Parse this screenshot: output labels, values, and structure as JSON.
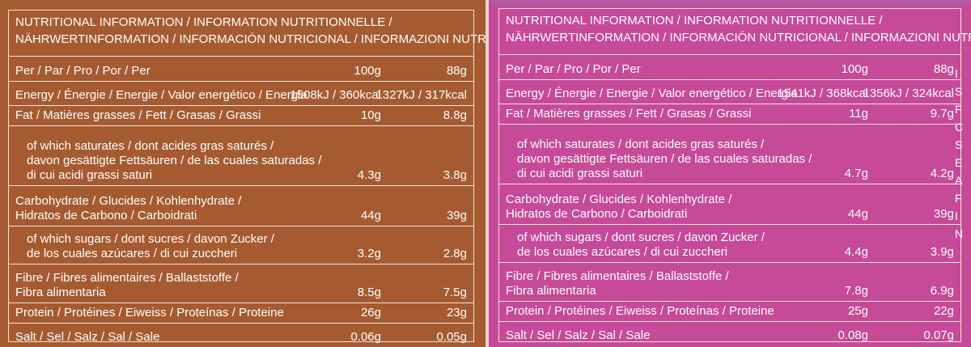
{
  "left": {
    "header": {
      "line1": "NUTRITIONAL INFORMATION / INFORMATION NUTRITIONNELLE /",
      "line2": "NÄHRWERTINFORMATION / INFORMACIÓN NUTRICIONAL / INFORMAZIONI NUTRIZIONALI"
    },
    "rows": [
      {
        "label": [
          "Per / Par / Pro / Por / Per"
        ],
        "v100": "100g",
        "v88": "88g"
      },
      {
        "label": [
          "Energy / Énergie / Energie / Valor energético / Energia"
        ],
        "v100": "1508kJ / 360kcal",
        "v88": "1327kJ / 317kcal"
      },
      {
        "label": [
          "Fat / Matières grasses / Fett / Grasas / Grassi"
        ],
        "v100": "10g",
        "v88": "8.8g"
      },
      {
        "label": [
          "of which saturates / dont acides gras saturés /",
          "davon gesättigte Fettsäuren / de las cuales saturadas /",
          "di cui acidi grassi saturi"
        ],
        "v100": "4.3g",
        "v88": "3.8g"
      },
      {
        "label": [
          "Carbohydrate / Glucides / Kohlenhydrate /",
          "Hidratos de Carbono / Carboidrati"
        ],
        "v100": "44g",
        "v88": "39g"
      },
      {
        "label": [
          "of which sugars / dont sucres / davon Zucker /",
          "de los cuales azúcares / di cui zuccheri"
        ],
        "v100": "3.2g",
        "v88": "2.8g"
      },
      {
        "label": [
          "Fibre / Fibres alimentaires / Ballaststoffe /",
          "Fibra alimentaria"
        ],
        "v100": "8.5g",
        "v88": "7.5g"
      },
      {
        "label": [
          "Protein / Protéines / Eiweiss / Proteínas / Proteine"
        ],
        "v100": "26g",
        "v88": "23g"
      },
      {
        "label": [
          "Salt / Sel / Salz / Sal / Sale"
        ],
        "v100": "0.06g",
        "v88": "0.05g"
      }
    ]
  },
  "right": {
    "header": {
      "line1": "NUTRITIONAL INFORMATION / INFORMATION NUTRITIONNELLE /",
      "line2": "NÄHRWERTINFORMATION / INFORMACIÓN NUTRICIONAL / INFORMAZIONI NUTRIZIONALI"
    },
    "rows": [
      {
        "label": [
          "Per / Par / Pro / Por / Per"
        ],
        "v100": "100g",
        "v88": "88g"
      },
      {
        "label": [
          "Energy / Énergie / Energie / Valor energético / Energia"
        ],
        "v100": "1541kJ / 368kcal",
        "v88": "1356kJ / 324kcal"
      },
      {
        "label": [
          "Fat / Matières grasses / Fett / Grasas / Grassi"
        ],
        "v100": "11g",
        "v88": "9.7g"
      },
      {
        "label": [
          "of which saturates / dont acides gras saturés /",
          "davon gesättigte Fettsäuren / de las cuales saturadas /",
          "di cui acidi grassi saturi"
        ],
        "v100": "4.7g",
        "v88": "4.2g"
      },
      {
        "label": [
          "Carbohydrate / Glucides / Kohlenhydrate /",
          "Hidratos de Carbono / Carboidrati"
        ],
        "v100": "44g",
        "v88": "39g"
      },
      {
        "label": [
          "of which sugars / dont sucres / davon Zucker /",
          "de los cuales azúcares / di cui zuccheri"
        ],
        "v100": "4.4g",
        "v88": "3.9g"
      },
      {
        "label": [
          "Fibre / Fibres alimentaires / Ballaststoffe /",
          "Fibra alimentaria"
        ],
        "v100": "7.8g",
        "v88": "6.9g"
      },
      {
        "label": [
          "Protein / Protéines / Eiweiss / Proteínas / Proteine"
        ],
        "v100": "25g",
        "v88": "22g"
      },
      {
        "label": [
          "Salt / Sel / Salz / Sal / Sale"
        ],
        "v100": "0.08g",
        "v88": "0.07g"
      }
    ]
  },
  "edge_letters": [
    "I",
    "S",
    "F",
    "C",
    "S",
    "E",
    "A",
    "F",
    "I",
    "N"
  ]
}
